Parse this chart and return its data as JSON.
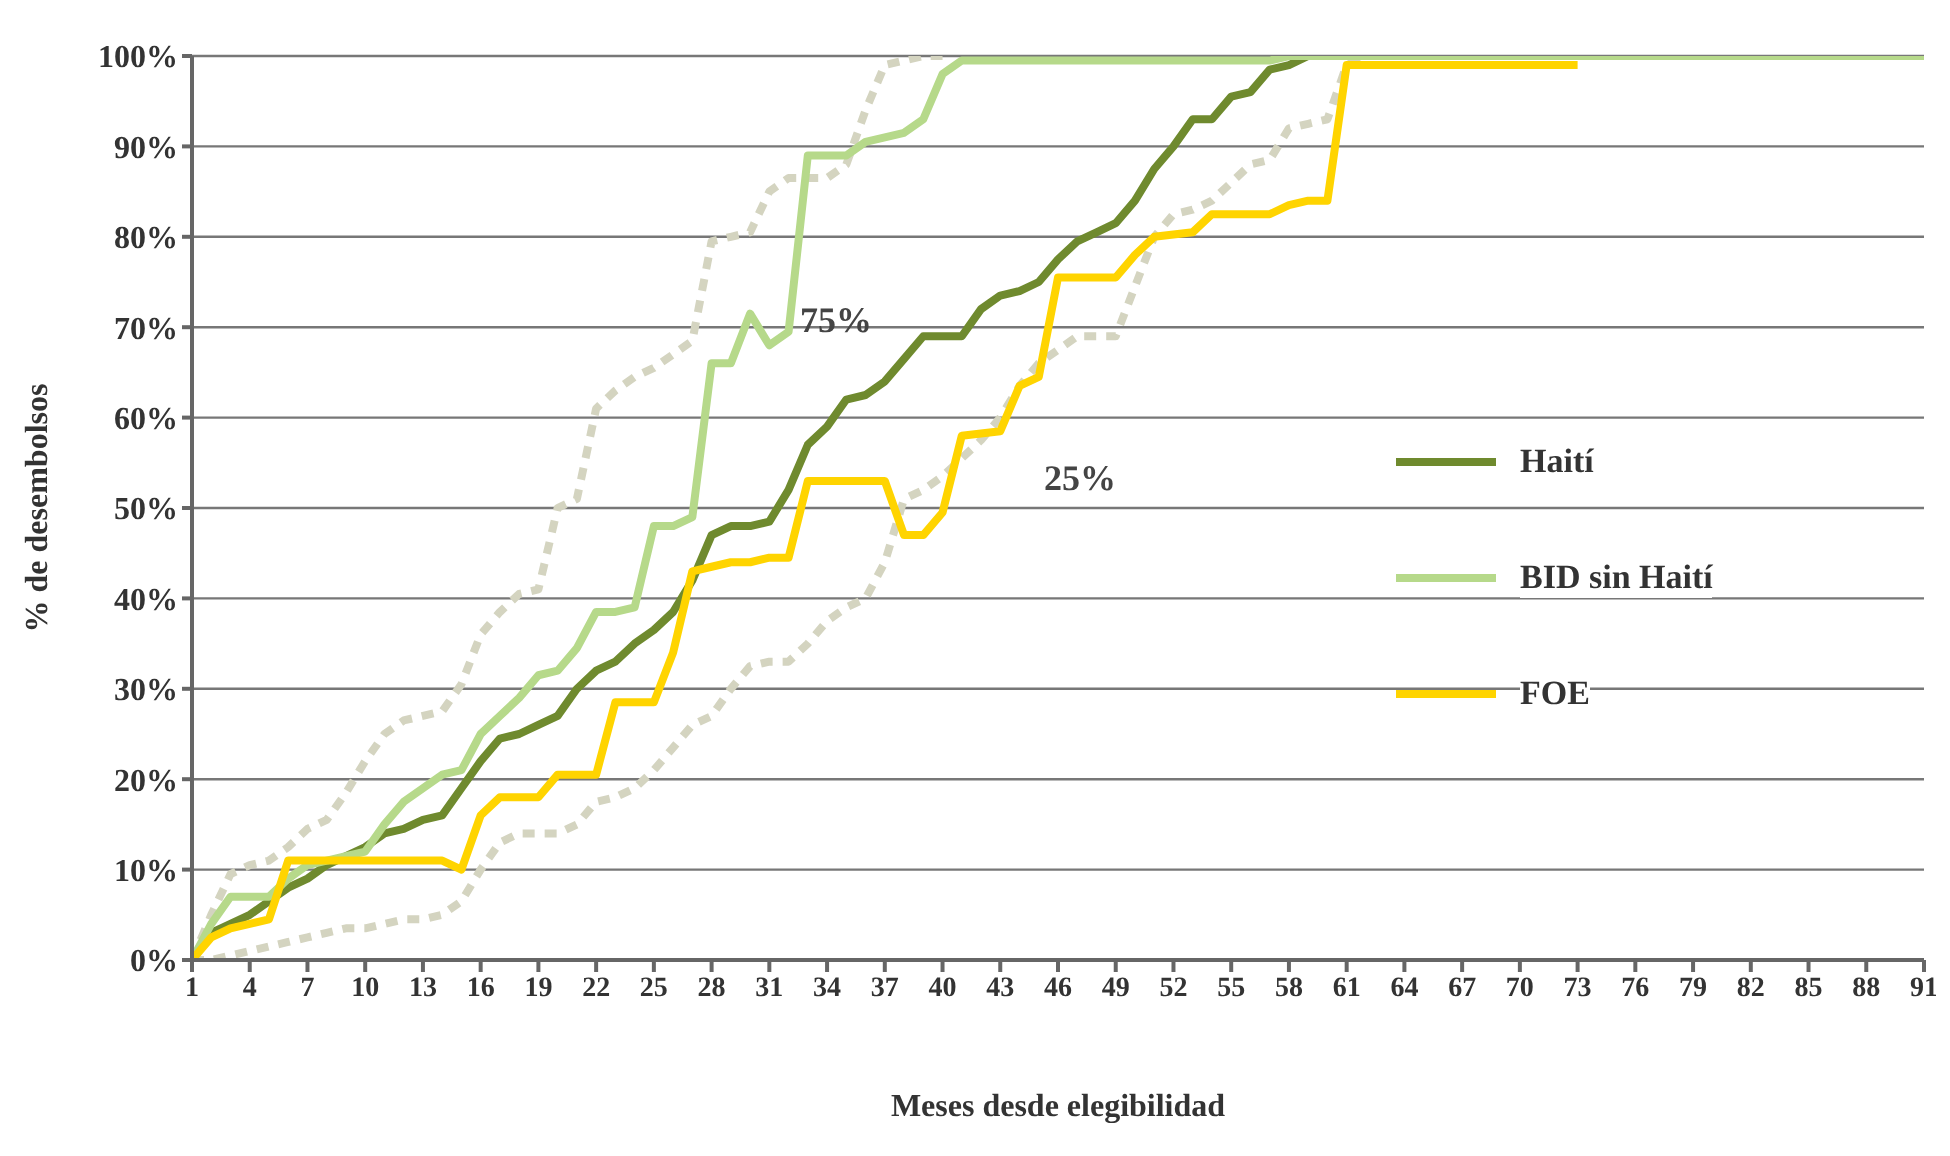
{
  "chart_data": {
    "type": "line",
    "xlabel": "Meses desde elegibilidad",
    "ylabel": "% de desembolsos",
    "xlim": [
      1,
      91
    ],
    "xticks": [
      1,
      4,
      7,
      10,
      13,
      16,
      19,
      22,
      25,
      28,
      31,
      34,
      37,
      40,
      43,
      46,
      49,
      52,
      55,
      58,
      61,
      64,
      67,
      70,
      73,
      76,
      79,
      82,
      85,
      88,
      91
    ],
    "ylim": [
      0,
      100
    ],
    "yticks": [
      {
        "value": 0,
        "label": "0%"
      },
      {
        "value": 10,
        "label": "10%"
      },
      {
        "value": 20,
        "label": "20%"
      },
      {
        "value": 30,
        "label": "30%"
      },
      {
        "value": 40,
        "label": "40%"
      },
      {
        "value": 50,
        "label": "50%"
      },
      {
        "value": 60,
        "label": "60%"
      },
      {
        "value": 70,
        "label": "70%"
      },
      {
        "value": 80,
        "label": "80%"
      },
      {
        "value": 90,
        "label": "90%"
      },
      {
        "value": 100,
        "label": "100%"
      }
    ],
    "grid": "y",
    "legend": "right",
    "annotations": [
      "75%",
      "25%"
    ],
    "series": [
      {
        "color": "#d4d4c0",
        "line_style": "dashed",
        "x": [
          1,
          2,
          3,
          4,
          5,
          6,
          7,
          8,
          9,
          10,
          11,
          12,
          13,
          14,
          15,
          16,
          17,
          18,
          19,
          20,
          21,
          22,
          23,
          24,
          25,
          26,
          27,
          28,
          29,
          30,
          31,
          32,
          33,
          34,
          35,
          36,
          37,
          38,
          39,
          40
        ],
        "values": [
          0,
          5,
          9.5,
          10.5,
          11,
          12.5,
          14.5,
          15.5,
          18.5,
          22,
          25,
          26.5,
          27,
          27.5,
          30.5,
          36,
          38.5,
          40.5,
          41,
          50,
          51,
          61,
          63,
          64.5,
          65.5,
          67,
          68.5,
          79.5,
          80,
          80.5,
          85,
          86.5,
          86.5,
          86.5,
          88,
          94,
          99,
          99.5,
          100,
          100
        ]
      },
      {
        "color": "#d4d4c0",
        "line_style": "dashed",
        "x": [
          1,
          2,
          3,
          4,
          5,
          6,
          7,
          8,
          9,
          10,
          11,
          12,
          13,
          14,
          15,
          16,
          17,
          18,
          19,
          20,
          21,
          22,
          23,
          24,
          25,
          26,
          27,
          28,
          29,
          30,
          31,
          32,
          33,
          34,
          35,
          36,
          37,
          38,
          39,
          40,
          41,
          42,
          43,
          44,
          45,
          46,
          47,
          48,
          49,
          50,
          51,
          52,
          53,
          54,
          55,
          56,
          57,
          58,
          59,
          60,
          61,
          62
        ],
        "values": [
          0,
          0,
          0.5,
          1,
          1.5,
          2,
          2.5,
          3,
          3.5,
          3.5,
          4,
          4.5,
          4.5,
          5,
          6.5,
          10,
          13,
          14,
          14,
          14,
          15,
          17.5,
          18,
          19,
          21,
          23.5,
          26,
          27,
          30,
          32.5,
          33,
          33,
          35,
          37.5,
          39,
          40,
          44,
          51,
          52,
          53.5,
          55.5,
          57.5,
          60,
          63.5,
          66,
          67.5,
          69,
          69,
          69,
          74.5,
          80,
          82.5,
          83,
          84,
          86,
          88,
          88.5,
          92,
          92.5,
          93,
          99,
          100
        ]
      },
      {
        "name": "Haití",
        "color": "#6f8a2e",
        "line_style": "solid",
        "x": [
          1,
          2,
          3,
          4,
          5,
          6,
          7,
          8,
          9,
          10,
          11,
          12,
          13,
          14,
          15,
          16,
          17,
          18,
          19,
          20,
          21,
          22,
          23,
          24,
          25,
          26,
          27,
          28,
          29,
          30,
          31,
          32,
          33,
          34,
          35,
          36,
          37,
          38,
          39,
          40,
          41,
          42,
          43,
          44,
          45,
          46,
          47,
          48,
          49,
          50,
          51,
          52,
          53,
          54,
          55,
          56,
          57,
          58,
          59,
          91
        ],
        "values": [
          0,
          3,
          4,
          5,
          6.5,
          8,
          9,
          10.5,
          11.5,
          12.5,
          14,
          14.5,
          15.5,
          16,
          19,
          22,
          24.5,
          25,
          26,
          27,
          30,
          32,
          33,
          35,
          36.5,
          38.5,
          42,
          47,
          48,
          48,
          48.5,
          52,
          57,
          59,
          62,
          62.5,
          64,
          66.5,
          69,
          69,
          69,
          72,
          73.5,
          74,
          75,
          77.5,
          79.5,
          80.5,
          81.5,
          84,
          87.5,
          90,
          93,
          93,
          95.5,
          96,
          98.5,
          99,
          100,
          100
        ]
      },
      {
        "name": "BID sin Haití",
        "color": "#b6d98a",
        "line_style": "solid",
        "x": [
          1,
          2,
          3,
          4,
          5,
          6,
          7,
          8,
          9,
          10,
          11,
          12,
          13,
          14,
          15,
          16,
          17,
          18,
          19,
          20,
          21,
          22,
          23,
          24,
          25,
          26,
          27,
          28,
          29,
          30,
          31,
          32,
          33,
          34,
          35,
          36,
          37,
          38,
          39,
          40,
          41,
          57,
          58,
          91
        ],
        "values": [
          0,
          4,
          7,
          7,
          7,
          9,
          10.5,
          11,
          11.5,
          12,
          15,
          17.5,
          19,
          20.5,
          21,
          25,
          27,
          29,
          31.5,
          32,
          34.5,
          38.5,
          38.5,
          39,
          48,
          48,
          49,
          66,
          66,
          71.5,
          68,
          69.5,
          89,
          89,
          89,
          90.5,
          91,
          91.5,
          93,
          98,
          99.5,
          99.5,
          100,
          100
        ]
      },
      {
        "name": "FOE",
        "color": "#ffd400",
        "line_style": "solid",
        "x": [
          1,
          2,
          3,
          4,
          5,
          6,
          14,
          15,
          16,
          17,
          19,
          20,
          22,
          23,
          25,
          26,
          27,
          28,
          29,
          30,
          31,
          32,
          33,
          37,
          38,
          39,
          40,
          41,
          43,
          44,
          45,
          46,
          49,
          50,
          51,
          53,
          54,
          57,
          58,
          59,
          60,
          61,
          73
        ],
        "values": [
          0,
          2.5,
          3.5,
          4,
          4.5,
          11,
          11,
          10,
          16,
          18,
          18,
          20.5,
          20.5,
          28.5,
          28.5,
          34,
          43,
          43.5,
          44,
          44,
          44.5,
          44.5,
          53,
          53,
          47,
          47,
          49.5,
          58,
          58.5,
          63.5,
          64.5,
          75.5,
          75.5,
          78,
          80,
          80.5,
          82.5,
          82.5,
          83.5,
          84,
          84,
          99,
          99
        ]
      }
    ]
  }
}
